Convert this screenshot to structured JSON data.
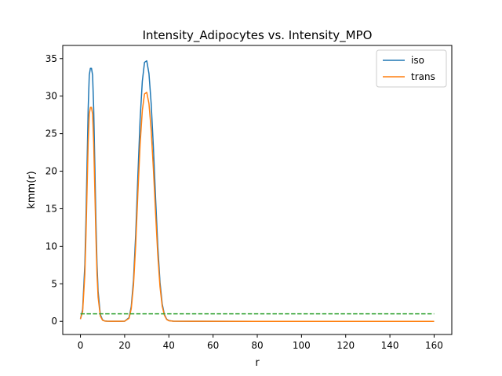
{
  "chart_data": {
    "type": "line",
    "title": "Intensity_Adipocytes vs. Intensity_MPO",
    "xlabel": "r",
    "ylabel": "kmm(r)",
    "xlim": [
      -8,
      168
    ],
    "ylim": [
      -1.75,
      36.75
    ],
    "xticks": [
      0,
      20,
      40,
      60,
      80,
      100,
      120,
      140,
      160
    ],
    "yticks": [
      0,
      5,
      10,
      15,
      20,
      25,
      30,
      35
    ],
    "grid": false,
    "legend": "top-right",
    "series": [
      {
        "name": "iso",
        "color": "#1f77b4",
        "style": "solid",
        "x": [
          0,
          1,
          2,
          2.5,
          3,
          3.5,
          4,
          4.5,
          5,
          5.5,
          6,
          6.5,
          7,
          7.5,
          8,
          9,
          10,
          11,
          12,
          14,
          16,
          18,
          20,
          22,
          23,
          24,
          25,
          26,
          27,
          28,
          29,
          30,
          31,
          32,
          33,
          34,
          35,
          36,
          37,
          38,
          39,
          40,
          42,
          50,
          80,
          120,
          160
        ],
        "y": [
          0.3,
          1.6,
          7.6,
          13.6,
          21.0,
          28.3,
          32.8,
          33.7,
          33.7,
          32.8,
          28.3,
          21.0,
          13.6,
          7.6,
          4.0,
          0.9,
          0.2,
          0.05,
          0.02,
          0.01,
          0.01,
          0.01,
          0.02,
          0.5,
          2.0,
          5.5,
          11.6,
          19.5,
          26.9,
          32.0,
          34.5,
          34.7,
          33.0,
          29.0,
          23.2,
          16.4,
          10.0,
          5.2,
          2.3,
          0.9,
          0.3,
          0.1,
          0.02,
          0.01,
          0.0,
          0.0,
          0.0
        ]
      },
      {
        "name": "trans",
        "color": "#ff7f0e",
        "style": "solid",
        "x": [
          0,
          1,
          2,
          2.5,
          3,
          3.5,
          4,
          4.5,
          5,
          5.5,
          6,
          6.5,
          7,
          7.5,
          8,
          9,
          10,
          11,
          12,
          14,
          16,
          18,
          20,
          22,
          23,
          24,
          25,
          26,
          27,
          28,
          29,
          30,
          31,
          32,
          33,
          34,
          35,
          36,
          37,
          38,
          39,
          40,
          42,
          50,
          80,
          120,
          160
        ],
        "y": [
          0.3,
          1.3,
          6.3,
          11.4,
          17.6,
          23.8,
          27.6,
          28.5,
          28.5,
          27.6,
          23.8,
          17.6,
          11.4,
          6.3,
          3.2,
          0.7,
          0.15,
          0.04,
          0.02,
          0.01,
          0.01,
          0.01,
          0.02,
          0.4,
          1.7,
          4.8,
          10.2,
          17.2,
          23.6,
          28.1,
          30.3,
          30.5,
          29.0,
          25.5,
          20.3,
          14.4,
          8.8,
          4.6,
          2.0,
          0.8,
          0.25,
          0.08,
          0.02,
          0.01,
          0.0,
          0.0,
          0.0
        ]
      },
      {
        "color": "#2ca02c",
        "style": "dashed",
        "x": [
          0,
          160
        ],
        "y": [
          1,
          1
        ]
      }
    ]
  }
}
